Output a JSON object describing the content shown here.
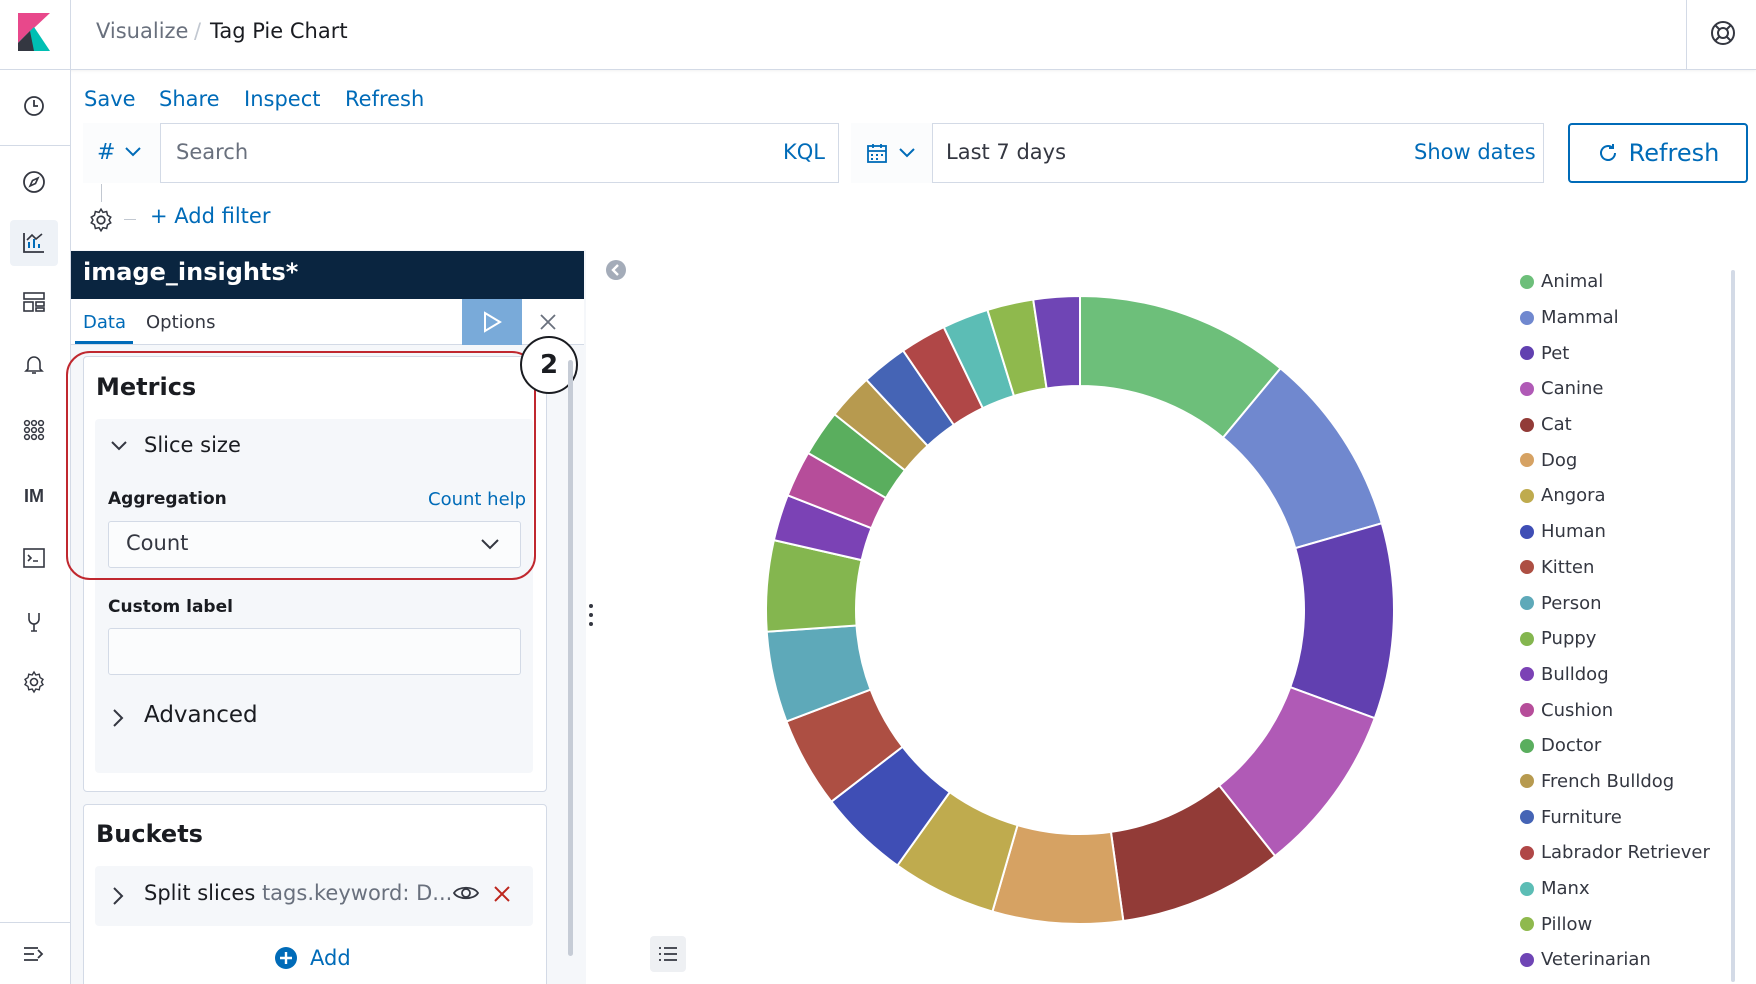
{
  "header": {
    "breadcrumb_parent": "Visualize",
    "breadcrumb_separator": "/",
    "breadcrumb_current": "Tag Pie Chart"
  },
  "top_menu": {
    "save": "Save",
    "share": "Share",
    "inspect": "Inspect",
    "refresh": "Refresh"
  },
  "query_bar": {
    "language_icon": "#",
    "search_placeholder": "Search",
    "query_language": "KQL",
    "date_range": "Last 7 days",
    "show_dates": "Show dates",
    "refresh_button": "Refresh"
  },
  "filter_bar": {
    "add_filter": "+ Add filter"
  },
  "editor": {
    "index_pattern": "image_insights*",
    "tabs": [
      {
        "label": "Data",
        "active": true
      },
      {
        "label": "Options",
        "active": false
      }
    ],
    "metrics": {
      "title": "Metrics",
      "slice_size": "Slice size",
      "aggregation_label": "Aggregation",
      "count_help": "Count help",
      "aggregation_value": "Count",
      "custom_label": "Custom label",
      "advanced": "Advanced"
    },
    "step_number": "2",
    "buckets": {
      "title": "Buckets",
      "split_slices": "Split slices",
      "split_field": "tags.keyword: D...",
      "add": "Add"
    }
  },
  "chart_data": {
    "type": "pie",
    "donut": true,
    "categories": [
      "Animal",
      "Mammal",
      "Pet",
      "Canine",
      "Cat",
      "Dog",
      "Angora",
      "Human",
      "Kitten",
      "Person",
      "Puppy",
      "Bulldog",
      "Cushion",
      "Doctor",
      "French Bulldog",
      "Furniture",
      "Labrador Retriever",
      "Manx",
      "Pillow",
      "Veterinarian"
    ],
    "values": [
      12.5,
      10.8,
      11.4,
      9.9,
      9.6,
      7.6,
      6.1,
      5.3,
      5.3,
      5.3,
      5.3,
      2.7,
      2.7,
      2.7,
      2.7,
      2.7,
      2.7,
      2.7,
      2.7,
      2.7
    ],
    "colors": [
      "#6dbf7a",
      "#7088cf",
      "#6140b0",
      "#b05ab6",
      "#923b37",
      "#d6a263",
      "#bfab4e",
      "#3f4eb5",
      "#ad4f43",
      "#5ea9b9",
      "#84b64f",
      "#7b42b5",
      "#b64d9a",
      "#5aae5e",
      "#b79a4f",
      "#4564b5",
      "#b04747",
      "#5cbdb5",
      "#8fb94d",
      "#6f45b5"
    ],
    "legend_position": "right"
  }
}
